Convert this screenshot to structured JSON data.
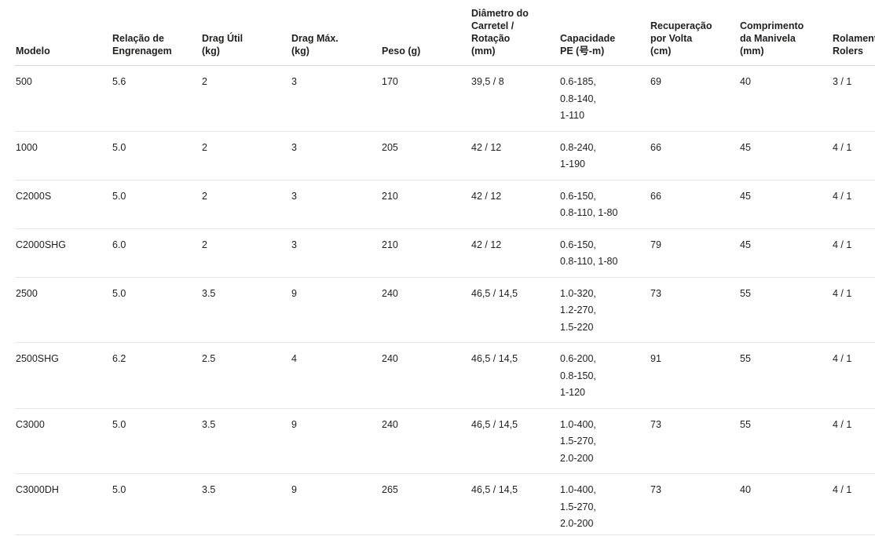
{
  "table": {
    "columns": [
      {
        "key": "modelo",
        "label": "Modelo"
      },
      {
        "key": "relacao",
        "label": "Relação de\nEngrenagem"
      },
      {
        "key": "drag_util",
        "label": "Drag Útil\n(kg)"
      },
      {
        "key": "drag_max",
        "label": "Drag Máx.\n(kg)"
      },
      {
        "key": "peso",
        "label": "Peso (g)"
      },
      {
        "key": "diametro",
        "label": "Diâmetro do\nCarretel /\nRotação\n(mm)"
      },
      {
        "key": "capacidade",
        "label": "Capacidade\nPE (号-m)"
      },
      {
        "key": "recuperacao",
        "label": "Recuperação\npor Volta\n(cm)"
      },
      {
        "key": "comprimento",
        "label": "Comprimento\nda Manivela\n(mm)"
      },
      {
        "key": "rolamentos",
        "label": "Rolamentos\nRolers"
      }
    ],
    "rows": [
      {
        "modelo": "500",
        "relacao": "5.6",
        "drag_util": "2",
        "drag_max": "3",
        "peso": "170",
        "diametro": "39,5 / 8",
        "capacidade": "0.6-185,\n0.8-140,\n1-110",
        "recuperacao": "69",
        "comprimento": "40",
        "rolamentos": "3 / 1"
      },
      {
        "modelo": "1000",
        "relacao": "5.0",
        "drag_util": "2",
        "drag_max": "3",
        "peso": "205",
        "diametro": "42 / 12",
        "capacidade": "0.8-240,\n1-190",
        "recuperacao": "66",
        "comprimento": "45",
        "rolamentos": "4 / 1"
      },
      {
        "modelo": "C2000S",
        "relacao": "5.0",
        "drag_util": "2",
        "drag_max": "3",
        "peso": "210",
        "diametro": "42 / 12",
        "capacidade": "0.6-150,\n0.8-110, 1-80",
        "recuperacao": "66",
        "comprimento": "45",
        "rolamentos": "4 / 1"
      },
      {
        "modelo": "C2000SHG",
        "relacao": "6.0",
        "drag_util": "2",
        "drag_max": "3",
        "peso": "210",
        "diametro": "42 / 12",
        "capacidade": "0.6-150,\n0.8-110, 1-80",
        "recuperacao": "79",
        "comprimento": "45",
        "rolamentos": "4 / 1"
      },
      {
        "modelo": "2500",
        "relacao": "5.0",
        "drag_util": "3.5",
        "drag_max": "9",
        "peso": "240",
        "diametro": "46,5 / 14,5",
        "capacidade": "1.0-320,\n1.2-270,\n1.5-220",
        "recuperacao": "73",
        "comprimento": "55",
        "rolamentos": "4 / 1"
      },
      {
        "modelo": "2500SHG",
        "relacao": "6.2",
        "drag_util": "2.5",
        "drag_max": "4",
        "peso": "240",
        "diametro": "46,5 / 14,5",
        "capacidade": "0.6-200,\n0.8-150,\n1-120",
        "recuperacao": "91",
        "comprimento": "55",
        "rolamentos": "4 / 1"
      },
      {
        "modelo": "C3000",
        "relacao": "5.0",
        "drag_util": "3.5",
        "drag_max": "9",
        "peso": "240",
        "diametro": "46,5 / 14,5",
        "capacidade": "1.0-400,\n1.5-270,\n2.0-200",
        "recuperacao": "73",
        "comprimento": "55",
        "rolamentos": "4 / 1"
      },
      {
        "modelo": "C3000DH",
        "relacao": "5.0",
        "drag_util": "3.5",
        "drag_max": "9",
        "peso": "265",
        "diametro": "46,5 / 14,5",
        "capacidade": "1.0-400,\n1.5-270,\n2.0-200",
        "recuperacao": "73",
        "comprimento": "40",
        "rolamentos": "4 / 1"
      }
    ]
  }
}
